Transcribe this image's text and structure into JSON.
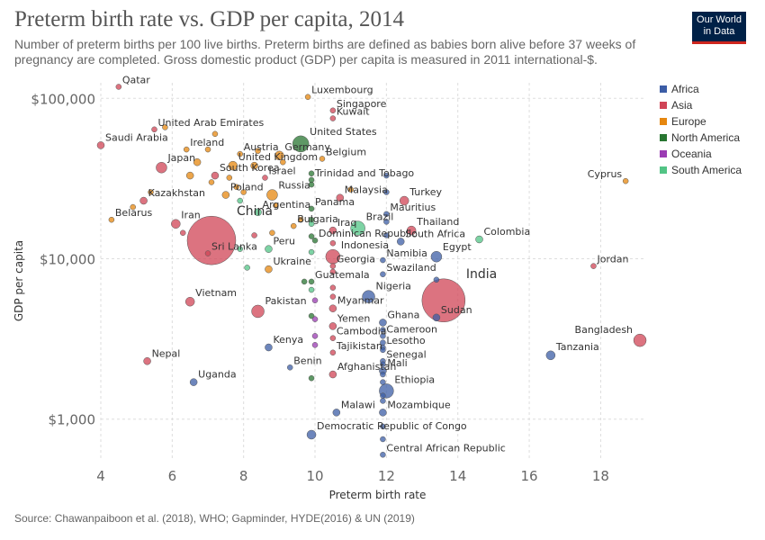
{
  "header": {
    "title": "Preterm birth rate vs. GDP per capita, 2014",
    "subtitle": "Number of preterm births per 100 live births. Preterm births are defined as babies born alive before 37 weeks of pregnancy are completed. Gross domestic product (GDP) per capita is measured in 2011 international-$.",
    "logo_line1": "Our World",
    "logo_line2": "in Data"
  },
  "footer": {
    "source": "Source: Chawanpaiboon et al. (2018), WHO; Gapminder, HYDE(2016) & UN (2019)"
  },
  "legend": [
    {
      "name": "Africa",
      "color": "#3c5da6"
    },
    {
      "name": "Asia",
      "color": "#d04456"
    },
    {
      "name": "Europe",
      "color": "#e6870f"
    },
    {
      "name": "North America",
      "color": "#287631"
    },
    {
      "name": "Oceania",
      "color": "#9b3cb3"
    },
    {
      "name": "South America",
      "color": "#52c485"
    }
  ],
  "chart_data": {
    "type": "scatter",
    "title": "Preterm birth rate vs. GDP per capita, 2014",
    "xlabel": "Preterm birth rate",
    "ylabel": "GDP per capita",
    "xlim": [
      4,
      19.2
    ],
    "ylim": [
      550,
      125000
    ],
    "y_scale": "log",
    "x_ticks": [
      4,
      6,
      8,
      10,
      12,
      14,
      16,
      18
    ],
    "y_ticks": [
      1000,
      10000,
      100000
    ],
    "y_tick_labels": [
      "$1,000",
      "$10,000",
      "$100,000"
    ],
    "grid": true,
    "legend_position": "right",
    "points": [
      {
        "label": "Qatar",
        "x": 4.5,
        "y": 118000,
        "region": "Asia",
        "size": 3
      },
      {
        "label": "Luxembourg",
        "x": 9.8,
        "y": 102000,
        "region": "Europe",
        "size": 3
      },
      {
        "label": "Singapore",
        "x": 10.5,
        "y": 84000,
        "region": "Asia",
        "size": 3
      },
      {
        "label": "Kuwait",
        "x": 10.5,
        "y": 75000,
        "region": "Asia",
        "size": 3
      },
      {
        "label": "United Arab Emirates",
        "x": 5.5,
        "y": 64000,
        "region": "Asia",
        "size": 3
      },
      {
        "label": "Saudi Arabia",
        "x": 4,
        "y": 51000,
        "region": "Asia",
        "size": 4
      },
      {
        "label": "United States",
        "x": 9.6,
        "y": 52000,
        "region": "North America",
        "size": 9
      },
      {
        "label": "Ireland",
        "x": 6.4,
        "y": 48000,
        "region": "Europe",
        "size": 3
      },
      {
        "label": "Austria",
        "x": 7.9,
        "y": 45000,
        "region": "Europe",
        "size": 3
      },
      {
        "label": "Germany",
        "x": 9.0,
        "y": 44000,
        "region": "Europe",
        "size": 5
      },
      {
        "label": "Belgium",
        "x": 10.2,
        "y": 42000,
        "region": "Europe",
        "size": 3
      },
      {
        "label": "United Kingdom",
        "x": 7.7,
        "y": 38000,
        "region": "Europe",
        "size": 5
      },
      {
        "label": "Japan",
        "x": 5.7,
        "y": 37000,
        "region": "Asia",
        "size": 6
      },
      {
        "label": "South Korea",
        "x": 7.2,
        "y": 33000,
        "region": "Asia",
        "size": 4
      },
      {
        "label": "Israel",
        "x": 8.6,
        "y": 32000,
        "region": "Asia",
        "size": 3
      },
      {
        "label": "Trinidad and Tobago",
        "x": 9.9,
        "y": 31000,
        "region": "North America",
        "size": 3
      },
      {
        "label": "Poland",
        "x": 7.5,
        "y": 25000,
        "region": "Europe",
        "size": 4
      },
      {
        "label": "Russia",
        "x": 8.8,
        "y": 25000,
        "region": "Europe",
        "size": 6
      },
      {
        "label": "Malaysia",
        "x": 10.7,
        "y": 24000,
        "region": "Asia",
        "size": 4
      },
      {
        "label": "Turkey",
        "x": 12.5,
        "y": 23000,
        "region": "Asia",
        "size": 5
      },
      {
        "label": "Cyprus",
        "x": 18.7,
        "y": 30500,
        "region": "Europe",
        "size": 3
      },
      {
        "label": "Kazakhstan",
        "x": 5.2,
        "y": 23000,
        "region": "Asia",
        "size": 4
      },
      {
        "label": "Argentina",
        "x": 8.4,
        "y": 19500,
        "region": "South America",
        "size": 4
      },
      {
        "label": "Panama",
        "x": 9.9,
        "y": 20500,
        "region": "North America",
        "size": 3
      },
      {
        "label": "Mauritius",
        "x": 12.0,
        "y": 19000,
        "region": "Africa",
        "size": 3
      },
      {
        "label": "Belarus",
        "x": 4.3,
        "y": 17500,
        "region": "Europe",
        "size": 3
      },
      {
        "label": "Iran",
        "x": 6.1,
        "y": 16500,
        "region": "Asia",
        "size": 5
      },
      {
        "label": "China",
        "x": 7.1,
        "y": 13000,
        "region": "Asia",
        "size": 27
      },
      {
        "label": "Bulgaria",
        "x": 9.4,
        "y": 16000,
        "region": "Europe",
        "size": 3
      },
      {
        "label": "Iraq",
        "x": 10.5,
        "y": 15000,
        "region": "Asia",
        "size": 4
      },
      {
        "label": "Brazil",
        "x": 11.2,
        "y": 15500,
        "region": "South America",
        "size": 8
      },
      {
        "label": "Thailand",
        "x": 12.7,
        "y": 15000,
        "region": "Asia",
        "size": 5
      },
      {
        "label": "Colombia",
        "x": 14.6,
        "y": 13200,
        "region": "South America",
        "size": 4
      },
      {
        "label": "Dominican Republic",
        "x": 10.0,
        "y": 13000,
        "region": "North America",
        "size": 3
      },
      {
        "label": "South Africa",
        "x": 12.4,
        "y": 12800,
        "region": "Africa",
        "size": 4
      },
      {
        "label": "Peru",
        "x": 8.7,
        "y": 11500,
        "region": "South America",
        "size": 4
      },
      {
        "label": "Sri Lanka",
        "x": 7.0,
        "y": 10800,
        "region": "Asia",
        "size": 3
      },
      {
        "label": "Indonesia",
        "x": 10.5,
        "y": 10300,
        "region": "Asia",
        "size": 8
      },
      {
        "label": "Egypt",
        "x": 13.4,
        "y": 10300,
        "region": "Africa",
        "size": 6
      },
      {
        "label": "Namibia",
        "x": 11.9,
        "y": 9800,
        "region": "Africa",
        "size": 3
      },
      {
        "label": "Ukraine",
        "x": 8.7,
        "y": 8600,
        "region": "Europe",
        "size": 4
      },
      {
        "label": "Georgia",
        "x": 10.5,
        "y": 9000,
        "region": "Asia",
        "size": 3
      },
      {
        "label": "Jordan",
        "x": 17.8,
        "y": 9000,
        "region": "Asia",
        "size": 3
      },
      {
        "label": "Swaziland",
        "x": 11.9,
        "y": 8000,
        "region": "Africa",
        "size": 3
      },
      {
        "label": "Guatemala",
        "x": 9.9,
        "y": 7200,
        "region": "North America",
        "size": 3
      },
      {
        "label": "India",
        "x": 13.6,
        "y": 5500,
        "region": "Asia",
        "size": 24
      },
      {
        "label": "Vietnam",
        "x": 6.5,
        "y": 5400,
        "region": "Asia",
        "size": 5
      },
      {
        "label": "Nigeria",
        "x": 11.5,
        "y": 5800,
        "region": "Africa",
        "size": 7
      },
      {
        "label": "Pakistan",
        "x": 8.4,
        "y": 4700,
        "region": "Asia",
        "size": 7
      },
      {
        "label": "Myanmar",
        "x": 10.5,
        "y": 4900,
        "region": "Asia",
        "size": 4
      },
      {
        "label": "Sudan",
        "x": 13.4,
        "y": 4300,
        "region": "Africa",
        "size": 4
      },
      {
        "label": "Ghana",
        "x": 11.9,
        "y": 4000,
        "region": "Africa",
        "size": 4
      },
      {
        "label": "Yemen",
        "x": 10.5,
        "y": 3800,
        "region": "Asia",
        "size": 4
      },
      {
        "label": "Cameroon",
        "x": 11.9,
        "y": 3300,
        "region": "Africa",
        "size": 3
      },
      {
        "label": "Cambodia",
        "x": 10.5,
        "y": 3200,
        "region": "Asia",
        "size": 3
      },
      {
        "label": "Bangladesh",
        "x": 19.1,
        "y": 3100,
        "region": "Asia",
        "size": 7
      },
      {
        "label": "Lesotho",
        "x": 11.9,
        "y": 2800,
        "region": "Africa",
        "size": 3
      },
      {
        "label": "Kenya",
        "x": 8.7,
        "y": 2800,
        "region": "Africa",
        "size": 4
      },
      {
        "label": "Tajikistan",
        "x": 10.5,
        "y": 2600,
        "region": "Asia",
        "size": 3
      },
      {
        "label": "Tanzania",
        "x": 16.6,
        "y": 2500,
        "region": "Africa",
        "size": 5
      },
      {
        "label": "Senegal",
        "x": 11.9,
        "y": 2300,
        "region": "Africa",
        "size": 3
      },
      {
        "label": "Nepal",
        "x": 5.3,
        "y": 2300,
        "region": "Asia",
        "size": 4
      },
      {
        "label": "Benin",
        "x": 9.3,
        "y": 2100,
        "region": "Africa",
        "size": 3
      },
      {
        "label": "Mali",
        "x": 11.9,
        "y": 2000,
        "region": "Africa",
        "size": 4
      },
      {
        "label": "Afghanistan",
        "x": 10.5,
        "y": 1900,
        "region": "Asia",
        "size": 4
      },
      {
        "label": "Uganda",
        "x": 6.6,
        "y": 1700,
        "region": "Africa",
        "size": 4
      },
      {
        "label": "Ethiopia",
        "x": 12.0,
        "y": 1500,
        "region": "Africa",
        "size": 8
      },
      {
        "label": "Malawi",
        "x": 10.6,
        "y": 1100,
        "region": "Africa",
        "size": 4
      },
      {
        "label": "Mozambique",
        "x": 11.9,
        "y": 1100,
        "region": "Africa",
        "size": 4
      },
      {
        "label": "Democratic Republic of Congo",
        "x": 9.9,
        "y": 800,
        "region": "Africa",
        "size": 5
      },
      {
        "label": "Central African Republic",
        "x": 11.9,
        "y": 600,
        "region": "Africa",
        "size": 3
      },
      {
        "label": "",
        "x": 7.2,
        "y": 60000,
        "region": "Europe",
        "size": 3
      },
      {
        "label": "",
        "x": 5.8,
        "y": 66000,
        "region": "Europe",
        "size": 3
      },
      {
        "label": "",
        "x": 7.0,
        "y": 48000,
        "region": "Europe",
        "size": 3
      },
      {
        "label": "",
        "x": 8.4,
        "y": 47000,
        "region": "Europe",
        "size": 3
      },
      {
        "label": "",
        "x": 9.1,
        "y": 40000,
        "region": "Europe",
        "size": 3
      },
      {
        "label": "",
        "x": 6.7,
        "y": 40000,
        "region": "Europe",
        "size": 4
      },
      {
        "label": "",
        "x": 8.3,
        "y": 38000,
        "region": "Europe",
        "size": 4
      },
      {
        "label": "",
        "x": 6.5,
        "y": 33000,
        "region": "Europe",
        "size": 4
      },
      {
        "label": "",
        "x": 7.6,
        "y": 32000,
        "region": "Europe",
        "size": 3
      },
      {
        "label": "",
        "x": 7.1,
        "y": 30000,
        "region": "Europe",
        "size": 3
      },
      {
        "label": "",
        "x": 7.8,
        "y": 28000,
        "region": "Europe",
        "size": 3
      },
      {
        "label": "",
        "x": 8.0,
        "y": 26000,
        "region": "Europe",
        "size": 3
      },
      {
        "label": "",
        "x": 11.0,
        "y": 27000,
        "region": "Europe",
        "size": 3
      },
      {
        "label": "",
        "x": 5.4,
        "y": 26000,
        "region": "Europe",
        "size": 3
      },
      {
        "label": "",
        "x": 4.9,
        "y": 21000,
        "region": "Europe",
        "size": 3
      },
      {
        "label": "",
        "x": 8.9,
        "y": 21500,
        "region": "Europe",
        "size": 3
      },
      {
        "label": "",
        "x": 9.6,
        "y": 17500,
        "region": "Europe",
        "size": 3
      },
      {
        "label": "",
        "x": 8.8,
        "y": 14500,
        "region": "Europe",
        "size": 3
      },
      {
        "label": "",
        "x": 8.3,
        "y": 14000,
        "region": "Asia",
        "size": 3
      },
      {
        "label": "",
        "x": 6.3,
        "y": 14500,
        "region": "Asia",
        "size": 3
      },
      {
        "label": "",
        "x": 12.0,
        "y": 33000,
        "region": "Africa",
        "size": 3
      },
      {
        "label": "",
        "x": 12.0,
        "y": 26000,
        "region": "Africa",
        "size": 3
      },
      {
        "label": "",
        "x": 12.0,
        "y": 17000,
        "region": "Africa",
        "size": 3
      },
      {
        "label": "",
        "x": 12.0,
        "y": 14000,
        "region": "Africa",
        "size": 3
      },
      {
        "label": "",
        "x": 13.4,
        "y": 7400,
        "region": "Africa",
        "size": 3
      },
      {
        "label": "",
        "x": 9.9,
        "y": 34000,
        "region": "North America",
        "size": 3
      },
      {
        "label": "",
        "x": 9.9,
        "y": 29000,
        "region": "North America",
        "size": 3
      },
      {
        "label": "",
        "x": 9.9,
        "y": 17500,
        "region": "North America",
        "size": 3
      },
      {
        "label": "",
        "x": 9.9,
        "y": 13800,
        "region": "North America",
        "size": 3
      },
      {
        "label": "",
        "x": 9.7,
        "y": 7200,
        "region": "North America",
        "size": 3
      },
      {
        "label": "",
        "x": 9.9,
        "y": 4400,
        "region": "North America",
        "size": 3
      },
      {
        "label": "",
        "x": 9.9,
        "y": 1800,
        "region": "North America",
        "size": 3
      },
      {
        "label": "",
        "x": 7.9,
        "y": 23000,
        "region": "South America",
        "size": 3
      },
      {
        "label": "",
        "x": 9.9,
        "y": 16500,
        "region": "South America",
        "size": 3
      },
      {
        "label": "",
        "x": 7.9,
        "y": 11500,
        "region": "South America",
        "size": 3
      },
      {
        "label": "",
        "x": 8.1,
        "y": 8800,
        "region": "South America",
        "size": 3
      },
      {
        "label": "",
        "x": 9.9,
        "y": 6400,
        "region": "South America",
        "size": 3
      },
      {
        "label": "",
        "x": 9.9,
        "y": 11000,
        "region": "South America",
        "size": 3
      },
      {
        "label": "",
        "x": 10.0,
        "y": 5500,
        "region": "Oceania",
        "size": 3
      },
      {
        "label": "",
        "x": 10.0,
        "y": 3300,
        "region": "Oceania",
        "size": 3
      },
      {
        "label": "",
        "x": 10.0,
        "y": 2900,
        "region": "Oceania",
        "size": 3
      },
      {
        "label": "",
        "x": 10.0,
        "y": 4200,
        "region": "Oceania",
        "size": 3
      },
      {
        "label": "",
        "x": 10.5,
        "y": 6600,
        "region": "Asia",
        "size": 3
      },
      {
        "label": "",
        "x": 10.5,
        "y": 8300,
        "region": "Asia",
        "size": 3
      },
      {
        "label": "",
        "x": 10.5,
        "y": 5800,
        "region": "Asia",
        "size": 3
      },
      {
        "label": "",
        "x": 10.5,
        "y": 12500,
        "region": "Asia",
        "size": 3
      },
      {
        "label": "",
        "x": 11.9,
        "y": 3600,
        "region": "Africa",
        "size": 3
      },
      {
        "label": "",
        "x": 11.9,
        "y": 3000,
        "region": "Africa",
        "size": 3
      },
      {
        "label": "",
        "x": 11.9,
        "y": 2700,
        "region": "Africa",
        "size": 3
      },
      {
        "label": "",
        "x": 11.9,
        "y": 2200,
        "region": "Africa",
        "size": 3
      },
      {
        "label": "",
        "x": 11.9,
        "y": 1900,
        "region": "Africa",
        "size": 3
      },
      {
        "label": "",
        "x": 11.9,
        "y": 1700,
        "region": "Africa",
        "size": 3
      },
      {
        "label": "",
        "x": 11.9,
        "y": 1400,
        "region": "Africa",
        "size": 3
      },
      {
        "label": "",
        "x": 11.9,
        "y": 1300,
        "region": "Africa",
        "size": 3
      },
      {
        "label": "",
        "x": 11.9,
        "y": 900,
        "region": "Africa",
        "size": 3
      },
      {
        "label": "",
        "x": 11.9,
        "y": 750,
        "region": "Africa",
        "size": 3
      }
    ]
  }
}
